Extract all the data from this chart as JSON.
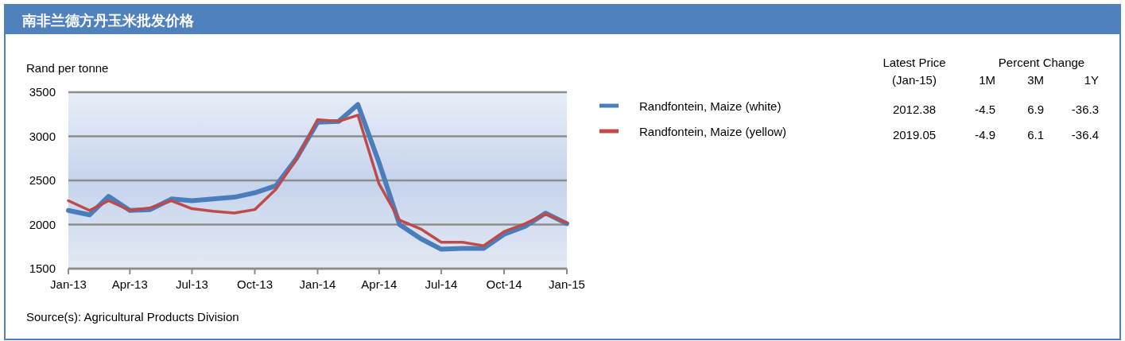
{
  "chart_data": {
    "type": "line",
    "title": "南非兰德方丹玉米批发价格",
    "ylabel": "Rand per tonne",
    "x": [
      "2013-01",
      "2013-02",
      "2013-03",
      "2013-04",
      "2013-05",
      "2013-06",
      "2013-07",
      "2013-08",
      "2013-09",
      "2013-10",
      "2013-11",
      "2013-12",
      "2014-01",
      "2014-02",
      "2014-03",
      "2014-04",
      "2014-05",
      "2014-06",
      "2014-07",
      "2014-08",
      "2014-09",
      "2014-10",
      "2014-11",
      "2014-12",
      "2015-01"
    ],
    "series": [
      {
        "name": "Randfontein, Maize (white)",
        "color": "#4a7ebb",
        "values": [
          2160,
          2110,
          2320,
          2160,
          2170,
          2290,
          2270,
          2290,
          2310,
          2360,
          2440,
          2750,
          3160,
          3170,
          3360,
          2700,
          2000,
          1840,
          1720,
          1730,
          1730,
          1890,
          1980,
          2130,
          2010
        ]
      },
      {
        "name": "Randfontein, Maize (yellow)",
        "color": "#be4b48",
        "values": [
          2270,
          2160,
          2270,
          2160,
          2190,
          2270,
          2180,
          2150,
          2130,
          2170,
          2400,
          2740,
          3190,
          3170,
          3240,
          2460,
          2050,
          1950,
          1800,
          1800,
          1760,
          1920,
          2010,
          2120,
          2020
        ]
      }
    ],
    "xlim": [
      "2013-01",
      "2015-01"
    ],
    "xticks": [
      {
        "value": "2013-01",
        "label": "Jan-13"
      },
      {
        "value": "2013-04",
        "label": "Apr-13"
      },
      {
        "value": "2013-07",
        "label": "Jul-13"
      },
      {
        "value": "2013-10",
        "label": "Oct-13"
      },
      {
        "value": "2014-01",
        "label": "Jan-14"
      },
      {
        "value": "2014-04",
        "label": "Apr-14"
      },
      {
        "value": "2014-07",
        "label": "Jul-14"
      },
      {
        "value": "2014-10",
        "label": "Oct-14"
      },
      {
        "value": "2015-01",
        "label": "Jan-15"
      }
    ],
    "ylim": [
      1500,
      3500
    ],
    "yticks": [
      1500,
      2000,
      2500,
      3000,
      3500
    ],
    "grid": "y",
    "legend": "right",
    "marker": "none",
    "line_style": "solid",
    "annotations": [
      "Source(s): Agricultural Products Division",
      "Latest Price",
      "(Jan-15)",
      "Percent Change",
      "1M",
      "3M",
      "1Y",
      "2012.38",
      "-4.5",
      "6.9",
      "-36.3",
      "2019.05",
      "-4.9",
      "6.1",
      "-36.4"
    ]
  }
}
